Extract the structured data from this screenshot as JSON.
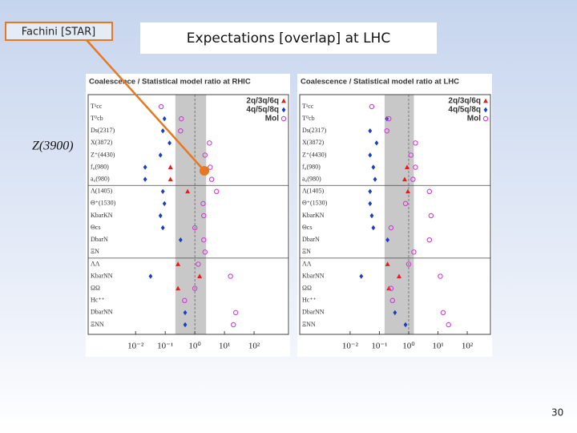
{
  "header": {
    "source_label": "Fachini [STAR]",
    "title": "Expectations [overlap] at LHC"
  },
  "annotation": "Z(3900)",
  "page_number": "30",
  "chart_data": [
    {
      "type": "dot",
      "title": "Coalescence / Statistical model ratio at RHIC",
      "categories": [
        "T¹cc",
        "T⁰cb",
        "Ds(2317)",
        "X(3872)",
        "Z⁺(4430)",
        "f₀(980)",
        "a₀(980)",
        "Λ(1405)",
        "Θ⁺(1530)",
        "KbarKN",
        "Θcs",
        "DbarN",
        "ΞN",
        "ΛΛ",
        "KbarNN",
        "ΩΩ",
        "Hc⁺⁺",
        "DbarNN",
        "ΞNN"
      ],
      "series": [
        {
          "name": "2q/3q/6q",
          "color": "#e02020",
          "marker": "triangle",
          "values": [
            null,
            null,
            null,
            null,
            null,
            0.15,
            0.15,
            0.57,
            null,
            null,
            null,
            null,
            null,
            0.27,
            1.45,
            0.27,
            null,
            null,
            null
          ]
        },
        {
          "name": "4q/5q/8q",
          "color": "#1a3fbf",
          "marker": "diamond",
          "values": [
            null,
            0.094,
            0.083,
            0.14,
            0.069,
            0.021,
            0.021,
            0.083,
            0.094,
            0.069,
            0.083,
            0.33,
            null,
            null,
            0.032,
            null,
            null,
            0.47,
            0.47
          ]
        },
        {
          "name": "Mol",
          "color": "#d040d0",
          "marker": "circle",
          "values": [
            0.073,
            0.35,
            0.33,
            3.1,
            2.2,
            3.3,
            3.7,
            5.4,
            1.9,
            2.0,
            1.0,
            2.0,
            2.2,
            1.3,
            16,
            1.0,
            0.45,
            24,
            20
          ]
        }
      ],
      "log_x": true,
      "xlim": [
        0.00025,
        1450
      ],
      "xticks": [
        {
          "value": 0.01,
          "label": "10⁻²"
        },
        {
          "value": 0.1,
          "label": "10⁻¹"
        },
        {
          "value": 1,
          "label": "10⁰"
        },
        {
          "value": 10,
          "label": "10¹"
        },
        {
          "value": 100,
          "label": "10²"
        }
      ],
      "shaded_range": [
        0.22,
        2.4
      ],
      "reference_line": 1,
      "legend": "top-right"
    },
    {
      "type": "dot",
      "title": "Coalescence / Statistical model ratio at LHC",
      "categories": [
        "T¹cc",
        "T⁰cb",
        "Ds(2317)",
        "X(3872)",
        "Z⁺(4430)",
        "f₀(980)",
        "a₀(980)",
        "Λ(1405)",
        "Θ⁺(1530)",
        "KbarKN",
        "Θcs",
        "DbarN",
        "ΞN",
        "ΛΛ",
        "KbarNN",
        "ΩΩ",
        "Hc⁺⁺",
        "DbarNN",
        "ΞNN"
      ],
      "series": [
        {
          "name": "2q/3q/6q",
          "color": "#e02020",
          "marker": "triangle",
          "values": [
            null,
            null,
            null,
            null,
            null,
            0.88,
            0.73,
            0.94,
            null,
            null,
            null,
            null,
            null,
            0.19,
            0.47,
            0.21,
            null,
            null,
            null
          ]
        },
        {
          "name": "4q/5q/8q",
          "color": "#1a3fbf",
          "marker": "diamond",
          "values": [
            null,
            0.18,
            0.048,
            0.08,
            0.048,
            0.062,
            0.071,
            0.048,
            0.048,
            0.055,
            0.062,
            0.19,
            null,
            null,
            0.024,
            null,
            null,
            0.34,
            0.78
          ]
        },
        {
          "name": "Mol",
          "color": "#d040d0",
          "marker": "circle",
          "values": [
            0.055,
            0.21,
            0.18,
            1.7,
            1.2,
            1.7,
            1.4,
            5.1,
            0.78,
            5.8,
            0.25,
            5.1,
            1.5,
            1.0,
            12,
            0.25,
            0.28,
            15,
            23
          ]
        }
      ],
      "log_x": true,
      "xlim": [
        0.00019,
        620
      ],
      "xticks": [
        {
          "value": 0.01,
          "label": "10⁻²"
        },
        {
          "value": 0.1,
          "label": "10⁻¹"
        },
        {
          "value": 1,
          "label": "10⁰"
        },
        {
          "value": 10,
          "label": "10¹"
        },
        {
          "value": 100,
          "label": "10²"
        }
      ],
      "shaded_range": [
        0.15,
        1.5
      ],
      "reference_line": 1,
      "legend": "top-right"
    }
  ]
}
